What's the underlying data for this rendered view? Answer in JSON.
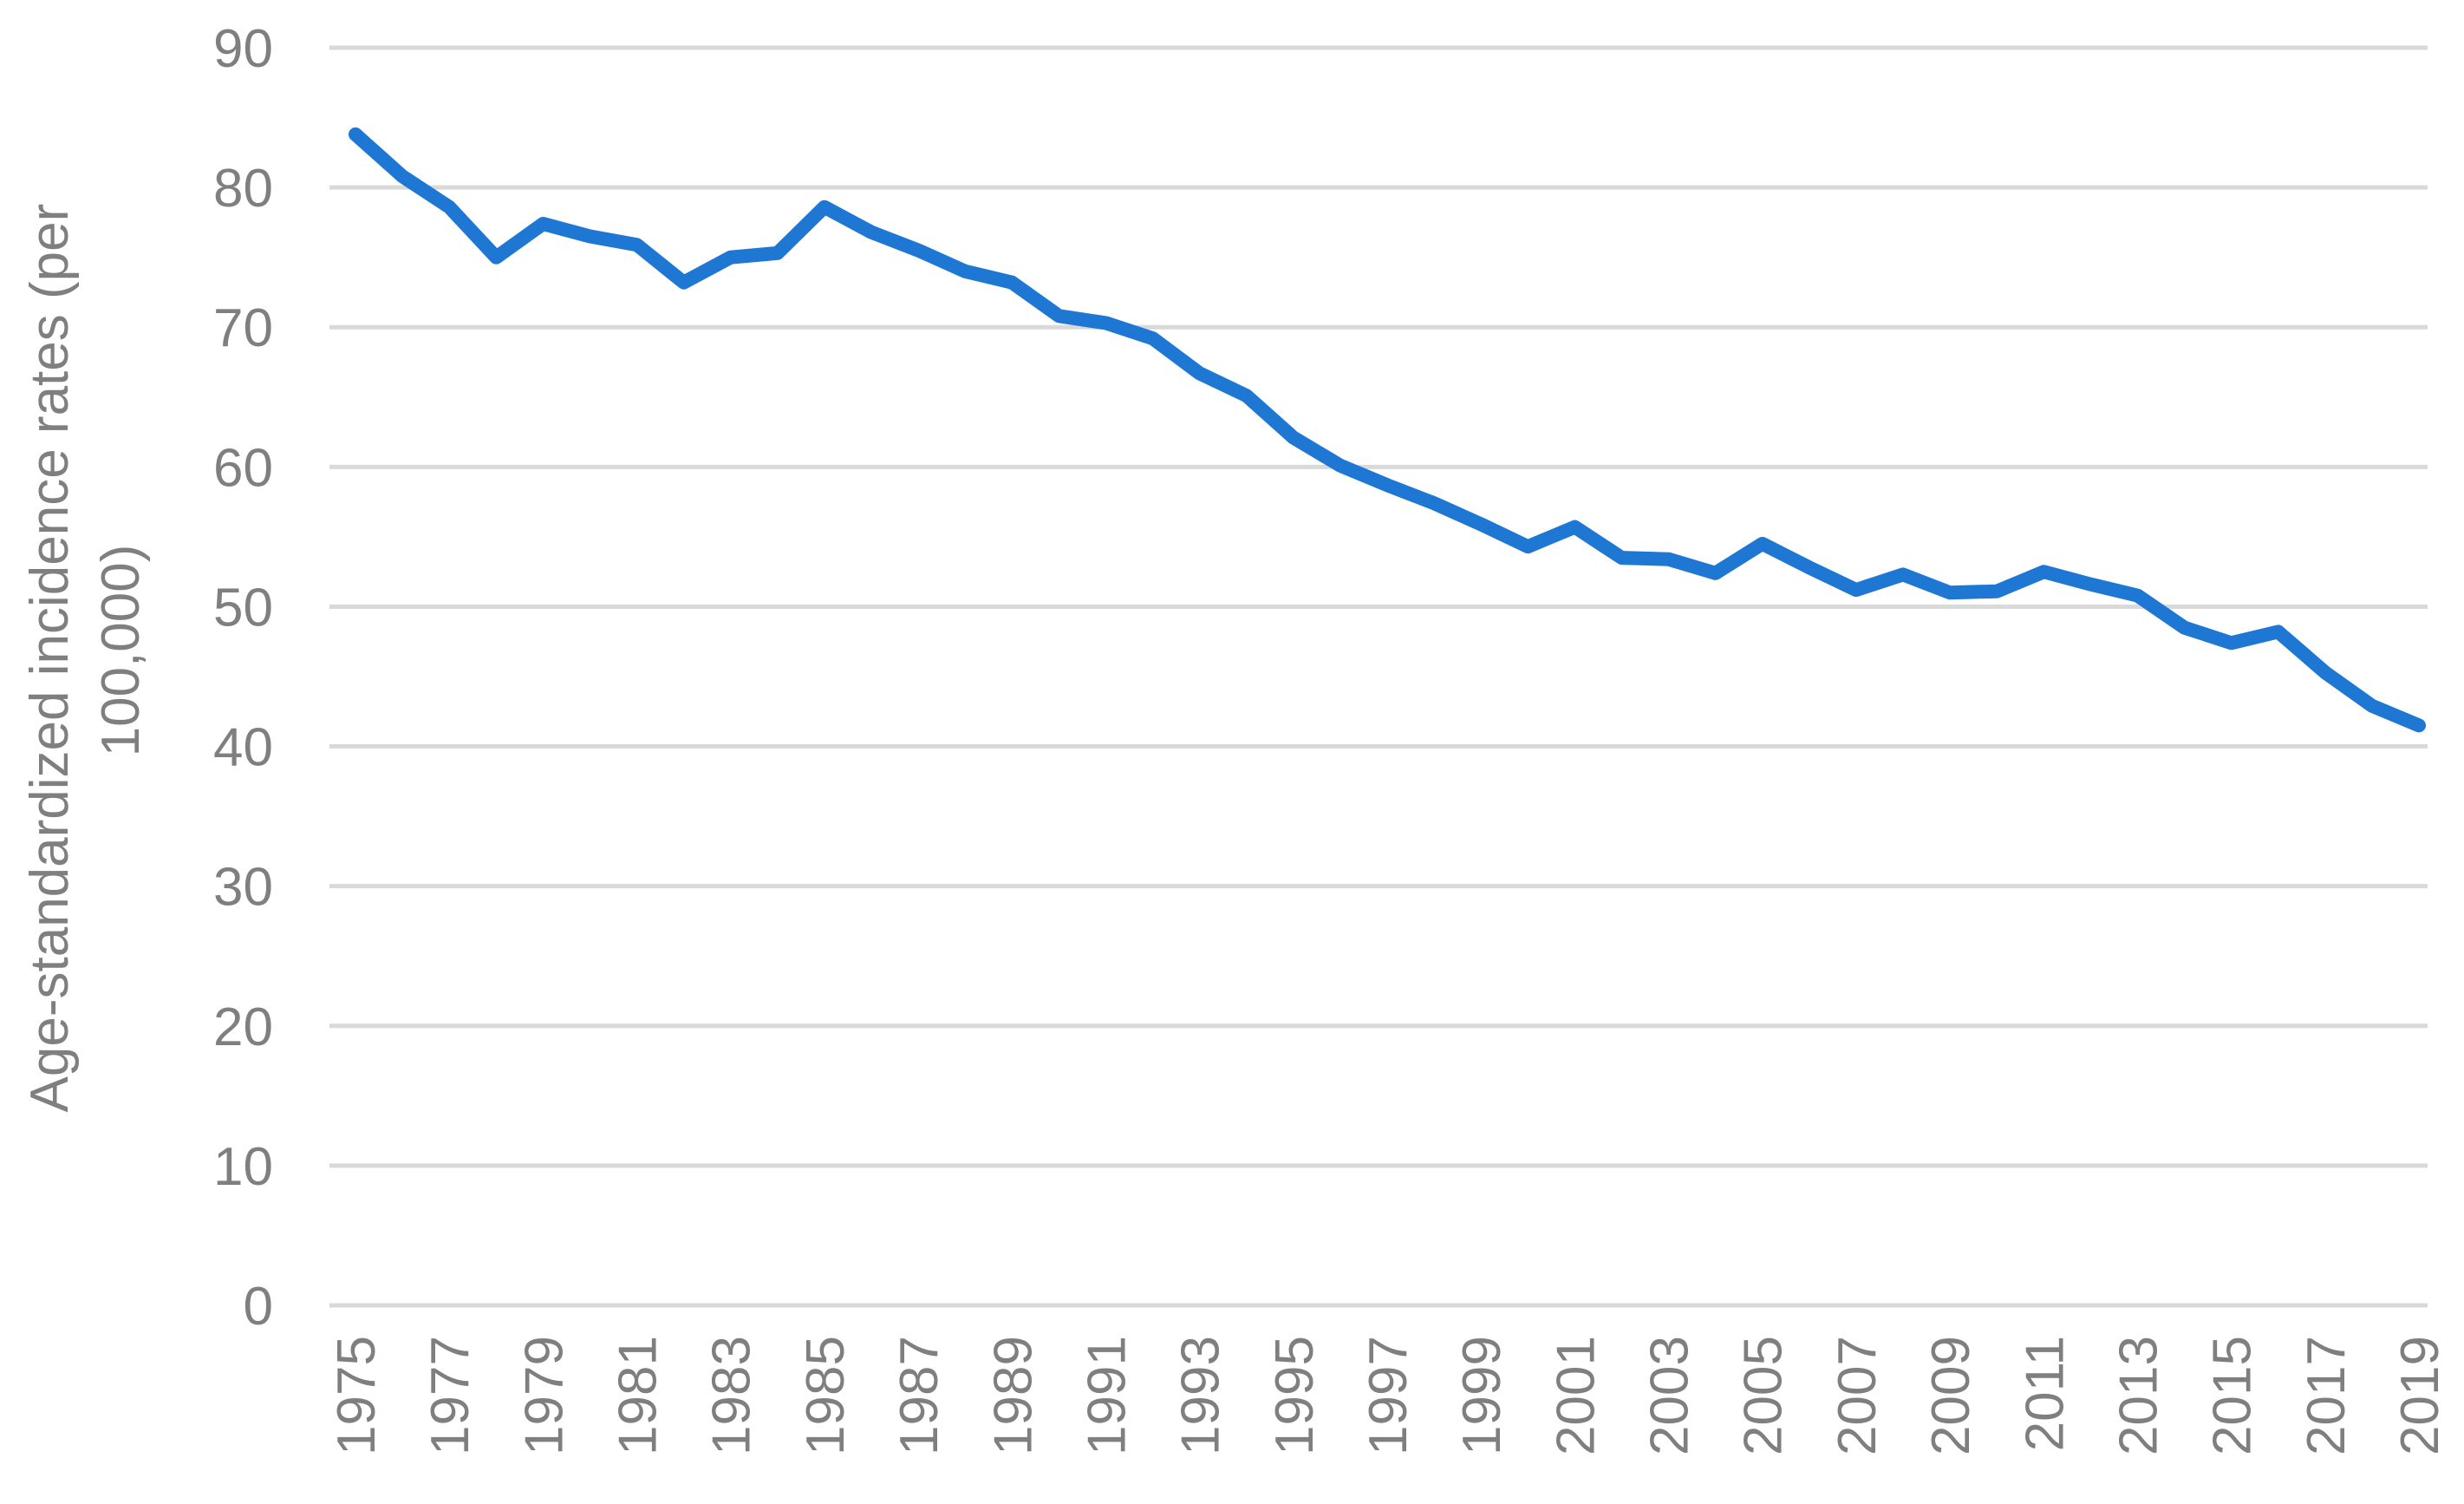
{
  "chart_data": {
    "type": "line",
    "ylabel_lines": [
      "Age-standardized incidence rates (per",
      "100,000)"
    ],
    "xlabel": "",
    "ylim": [
      0,
      90
    ],
    "yticks": [
      0,
      10,
      20,
      30,
      40,
      50,
      60,
      70,
      80,
      90
    ],
    "grid": true,
    "x": [
      1975,
      1976,
      1977,
      1978,
      1979,
      1980,
      1981,
      1982,
      1983,
      1984,
      1985,
      1986,
      1987,
      1988,
      1989,
      1990,
      1991,
      1992,
      1993,
      1994,
      1995,
      1996,
      1997,
      1998,
      1999,
      2000,
      2001,
      2002,
      2003,
      2004,
      2005,
      2006,
      2007,
      2008,
      2009,
      2010,
      2011,
      2012,
      2013,
      2014,
      2015,
      2016,
      2017,
      2018,
      2019
    ],
    "xticks": [
      1975,
      1977,
      1979,
      1981,
      1983,
      1985,
      1987,
      1989,
      1991,
      1993,
      1995,
      1997,
      1999,
      2001,
      2003,
      2005,
      2007,
      2009,
      2011,
      2013,
      2015,
      2017,
      2019
    ],
    "series": [
      {
        "color": "#1f77d4",
        "values": [
          83.8,
          80.8,
          78.6,
          75.0,
          77.4,
          76.5,
          75.9,
          73.2,
          75.0,
          75.3,
          78.6,
          76.8,
          75.5,
          74.0,
          73.2,
          70.8,
          70.3,
          69.2,
          66.7,
          65.1,
          62.1,
          60.1,
          58.7,
          57.4,
          55.9,
          54.3,
          55.7,
          53.5,
          53.4,
          52.4,
          54.5,
          52.8,
          51.2,
          52.3,
          51.0,
          51.1,
          52.5,
          51.6,
          50.8,
          48.5,
          47.4,
          48.2,
          45.3,
          42.9,
          41.5
        ]
      }
    ]
  }
}
